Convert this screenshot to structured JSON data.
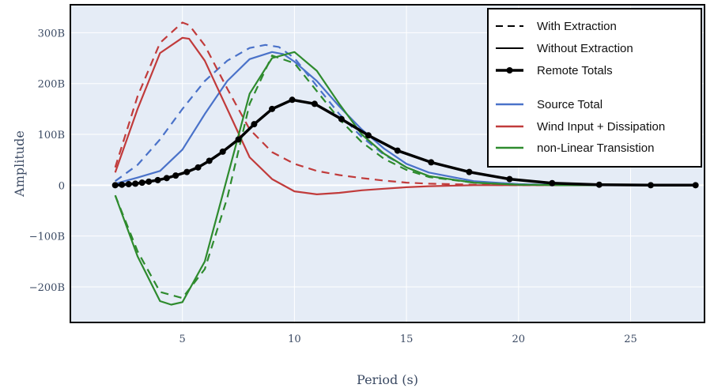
{
  "chart_data": {
    "type": "line",
    "xlabel": "Period (s)",
    "ylabel": "Amplitude",
    "xlim": [
      0,
      28.3
    ],
    "ylim": [
      -270,
      355
    ],
    "x_ticks": [
      5,
      10,
      15,
      20,
      25
    ],
    "x_tick_labels": [
      "5",
      "10",
      "15",
      "20",
      "25"
    ],
    "y_ticks": [
      -200,
      -100,
      0,
      100,
      200,
      300
    ],
    "y_tick_labels": [
      "−200B",
      "−100B",
      "0",
      "100B",
      "200B",
      "300B"
    ],
    "grid": true,
    "legend_position": "top-right",
    "legend": {
      "style_entries": [
        {
          "label": "With Extraction",
          "style": "dashed"
        },
        {
          "label": "Without Extraction",
          "style": "solid"
        },
        {
          "label": "Remote Totals",
          "style": "thick-with-markers"
        }
      ],
      "color_entries": [
        {
          "label": "Source Total",
          "color": "#4a72c9"
        },
        {
          "label": "Wind Input + Dissipation",
          "color": "#c13b3b"
        },
        {
          "label": "non-Linear Transistion",
          "color": "#2e8b2e"
        }
      ]
    },
    "series": [
      {
        "name": "Source Total",
        "variant": "With Extraction",
        "color": "#4a72c9",
        "dash": true,
        "x": [
          2,
          3,
          4,
          5,
          6,
          7,
          8,
          8.7,
          9.3,
          10,
          11,
          12,
          13,
          14,
          15,
          16,
          18,
          20,
          22,
          25,
          28
        ],
        "y": [
          8,
          40,
          90,
          150,
          205,
          245,
          270,
          276,
          272,
          250,
          195,
          140,
          95,
          60,
          35,
          18,
          5,
          2,
          0,
          0,
          0
        ]
      },
      {
        "name": "Source Total",
        "variant": "Without Extraction",
        "color": "#4a72c9",
        "dash": false,
        "x": [
          2,
          3,
          4,
          5,
          6,
          7,
          8,
          9,
          9.5,
          10,
          11,
          12,
          13,
          14,
          15,
          16,
          18,
          20,
          22,
          25,
          28
        ],
        "y": [
          3,
          15,
          28,
          70,
          140,
          205,
          248,
          262,
          258,
          243,
          205,
          155,
          110,
          72,
          42,
          25,
          8,
          2,
          0,
          0,
          0
        ]
      },
      {
        "name": "Wind Input + Dissipation",
        "variant": "With Extraction",
        "color": "#c13b3b",
        "dash": true,
        "x": [
          2,
          3,
          4,
          5,
          5.3,
          6,
          7,
          8,
          9,
          10,
          11,
          12,
          13,
          14,
          15,
          16,
          18,
          20,
          22,
          25,
          28
        ],
        "y": [
          35,
          175,
          280,
          320,
          315,
          275,
          190,
          110,
          65,
          42,
          28,
          20,
          14,
          9,
          5,
          3,
          1,
          0,
          0,
          0,
          0
        ]
      },
      {
        "name": "Wind Input + Dissipation",
        "variant": "Without Extraction",
        "color": "#c13b3b",
        "dash": false,
        "x": [
          2,
          3,
          4,
          5,
          5.3,
          6,
          7,
          8,
          9,
          10,
          11,
          12,
          13,
          14,
          15,
          16,
          18,
          20,
          22,
          25,
          28
        ],
        "y": [
          25,
          150,
          260,
          290,
          288,
          245,
          150,
          55,
          12,
          -12,
          -18,
          -15,
          -10,
          -7,
          -4,
          -2,
          0,
          0,
          0,
          0,
          0
        ]
      },
      {
        "name": "non-Linear Transistion",
        "variant": "With Extraction",
        "color": "#2e8b2e",
        "dash": true,
        "x": [
          2,
          3,
          4,
          5,
          6,
          7,
          8,
          9,
          10,
          11,
          12,
          13,
          14,
          15,
          16,
          18,
          20,
          22,
          25,
          28
        ],
        "y": [
          -20,
          -130,
          -210,
          -222,
          -165,
          -25,
          160,
          255,
          240,
          185,
          130,
          85,
          52,
          30,
          16,
          5,
          1,
          0,
          0,
          0
        ]
      },
      {
        "name": "non-Linear Transistion",
        "variant": "Without Extraction",
        "color": "#2e8b2e",
        "dash": false,
        "x": [
          2,
          3,
          4,
          4.5,
          5,
          6,
          7,
          8,
          9,
          10,
          11,
          12,
          13,
          14,
          15,
          16,
          18,
          20,
          22,
          25,
          28
        ],
        "y": [
          -20,
          -140,
          -228,
          -235,
          -230,
          -150,
          15,
          180,
          250,
          262,
          225,
          160,
          100,
          62,
          35,
          18,
          5,
          1,
          0,
          0,
          0
        ]
      },
      {
        "name": "Remote Totals",
        "variant": "Remote Totals",
        "color": "#000000",
        "dash": false,
        "markers": true,
        "x": [
          2,
          2.3,
          2.6,
          2.9,
          3.2,
          3.5,
          3.9,
          4.3,
          4.7,
          5.2,
          5.7,
          6.2,
          6.8,
          7.5,
          8.2,
          9,
          9.9,
          10.9,
          12.1,
          13.3,
          14.6,
          16.1,
          17.8,
          19.6,
          21.5,
          23.6,
          25.9,
          27.9
        ],
        "y": [
          0,
          1,
          2,
          3,
          5,
          7,
          10,
          14,
          19,
          26,
          35,
          48,
          66,
          90,
          120,
          150,
          168,
          160,
          130,
          98,
          68,
          45,
          26,
          12,
          4,
          1,
          0,
          0
        ]
      }
    ]
  }
}
